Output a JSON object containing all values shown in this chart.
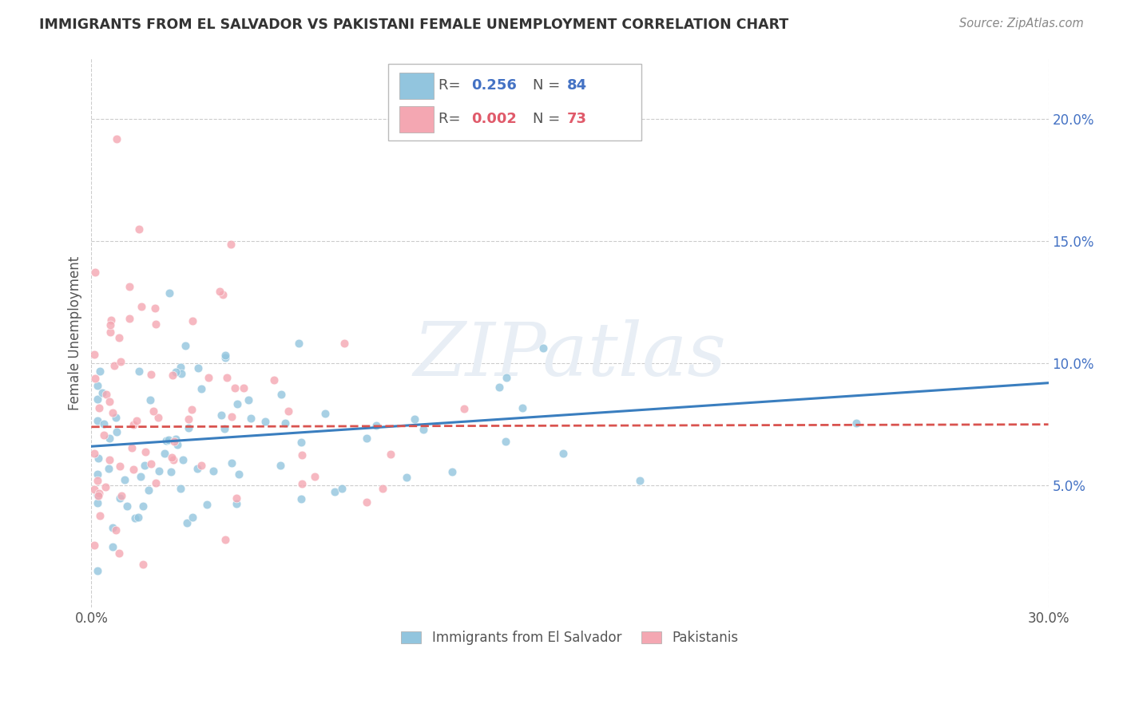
{
  "title": "IMMIGRANTS FROM EL SALVADOR VS PAKISTANI FEMALE UNEMPLOYMENT CORRELATION CHART",
  "source": "Source: ZipAtlas.com",
  "ylabel": "Female Unemployment",
  "y_ticks": [
    0.05,
    0.1,
    0.15,
    0.2
  ],
  "y_tick_labels": [
    "5.0%",
    "10.0%",
    "15.0%",
    "20.0%"
  ],
  "xlim": [
    0.0,
    0.3
  ],
  "ylim": [
    0.0,
    0.225
  ],
  "legend_r1": "0.256",
  "legend_n1": "84",
  "legend_r2": "0.002",
  "legend_n2": "73",
  "color_blue": "#92c5de",
  "color_pink": "#f4a7b2",
  "color_blue_line": "#3a7ebf",
  "color_pink_line": "#d9534f",
  "color_blue_text": "#4472c4",
  "color_pink_text": "#e05a6a",
  "color_grid": "#cccccc",
  "color_title": "#333333",
  "color_ytick": "#4472c4",
  "watermark_color": "#e8eef5",
  "blue_line_x0": 0.0,
  "blue_line_x1": 0.3,
  "blue_line_y0": 0.066,
  "blue_line_y1": 0.092,
  "pink_line_x0": 0.0,
  "pink_line_x1": 0.3,
  "pink_line_y0": 0.074,
  "pink_line_y1": 0.075,
  "seed_blue": 12,
  "seed_pink": 99
}
